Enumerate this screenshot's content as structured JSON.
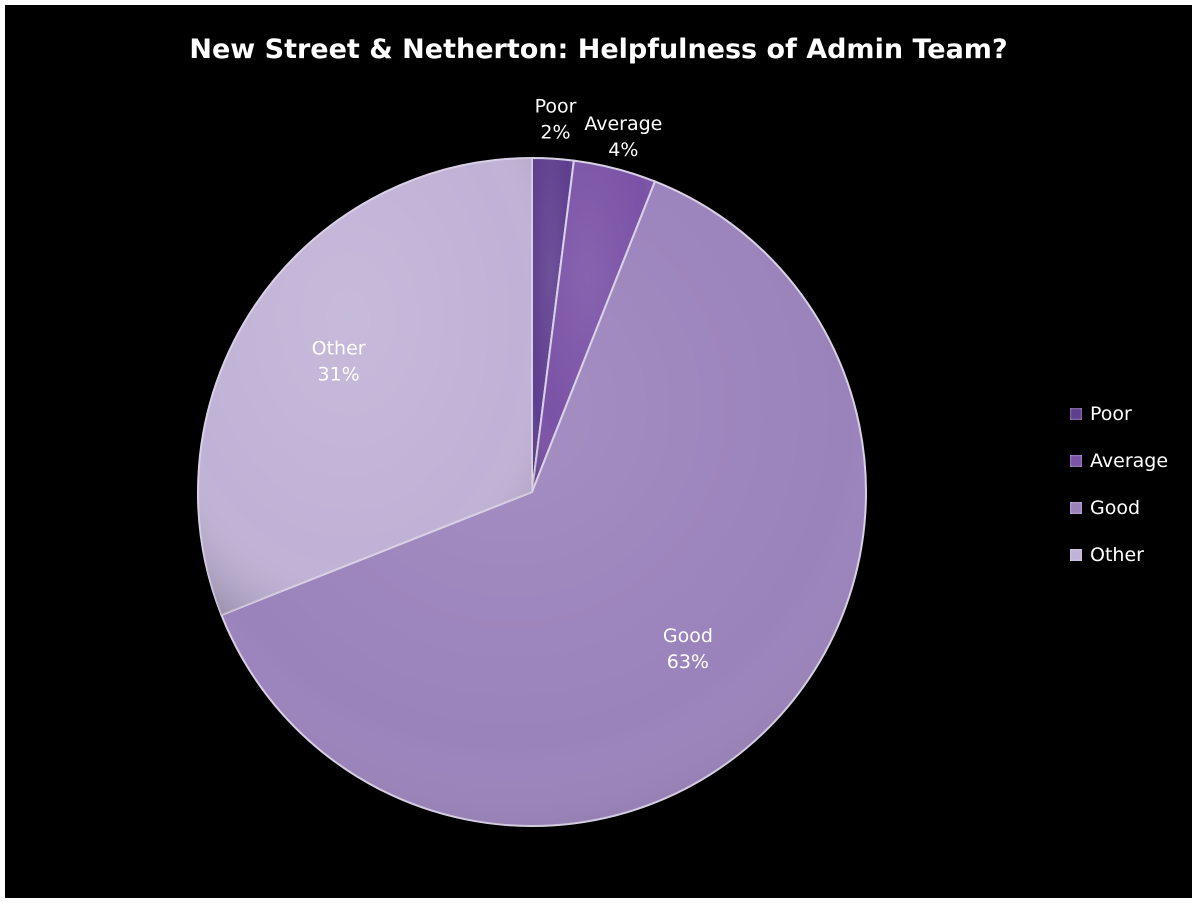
{
  "chart_data": {
    "type": "pie",
    "title": "New Street & Netherton: Helpfulness of Admin Team?",
    "categories": [
      "Poor",
      "Average",
      "Good",
      "Other"
    ],
    "values": [
      2,
      4,
      63,
      31
    ],
    "value_labels": [
      "2%",
      "4%",
      "63%",
      "31%"
    ],
    "colors": [
      "#5e3e8e",
      "#7a52a6",
      "#9a82bb",
      "#c0b2d6"
    ],
    "legend": {
      "position": "right",
      "items": [
        "Poor",
        "Average",
        "Good",
        "Other"
      ]
    },
    "background": "#000000"
  }
}
